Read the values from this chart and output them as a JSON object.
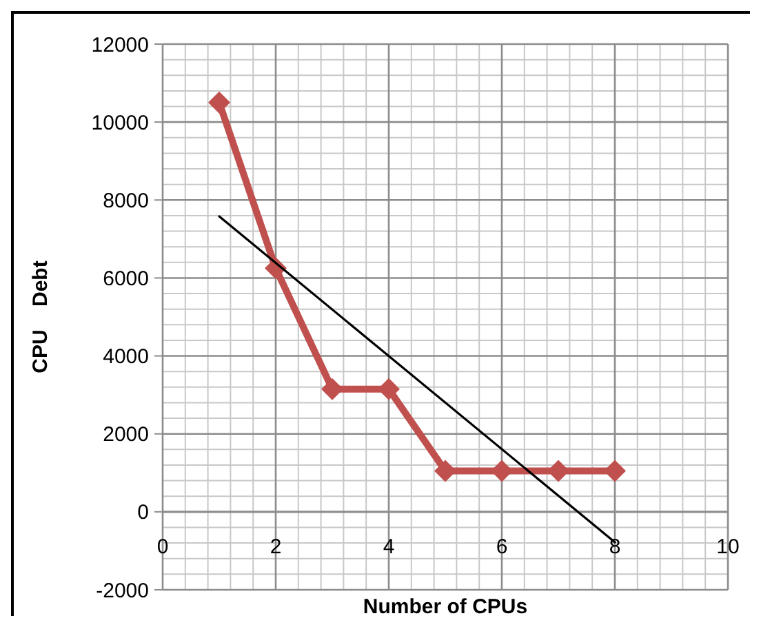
{
  "chart_data": {
    "type": "line",
    "xlabel": "Number of CPUs",
    "ylabel": "CPU    Debt",
    "xlim": [
      0,
      10
    ],
    "xticks": [
      0,
      2,
      4,
      6,
      8,
      10
    ],
    "ylim": [
      -2000,
      12000
    ],
    "yticks": [
      -2000,
      0,
      2000,
      4000,
      6000,
      8000,
      10000,
      12000
    ],
    "grid": true,
    "series": [
      {
        "color": "#c0504d",
        "x": [
          1,
          2,
          3,
          4,
          5,
          6,
          7,
          8
        ],
        "values": [
          10500,
          6250,
          3150,
          3150,
          1050,
          1050,
          1050,
          1050
        ],
        "marker": "diamond"
      },
      {
        "color": "#000000",
        "x": [
          1,
          8
        ],
        "values": [
          7580,
          -780
        ],
        "marker": "none"
      }
    ]
  }
}
